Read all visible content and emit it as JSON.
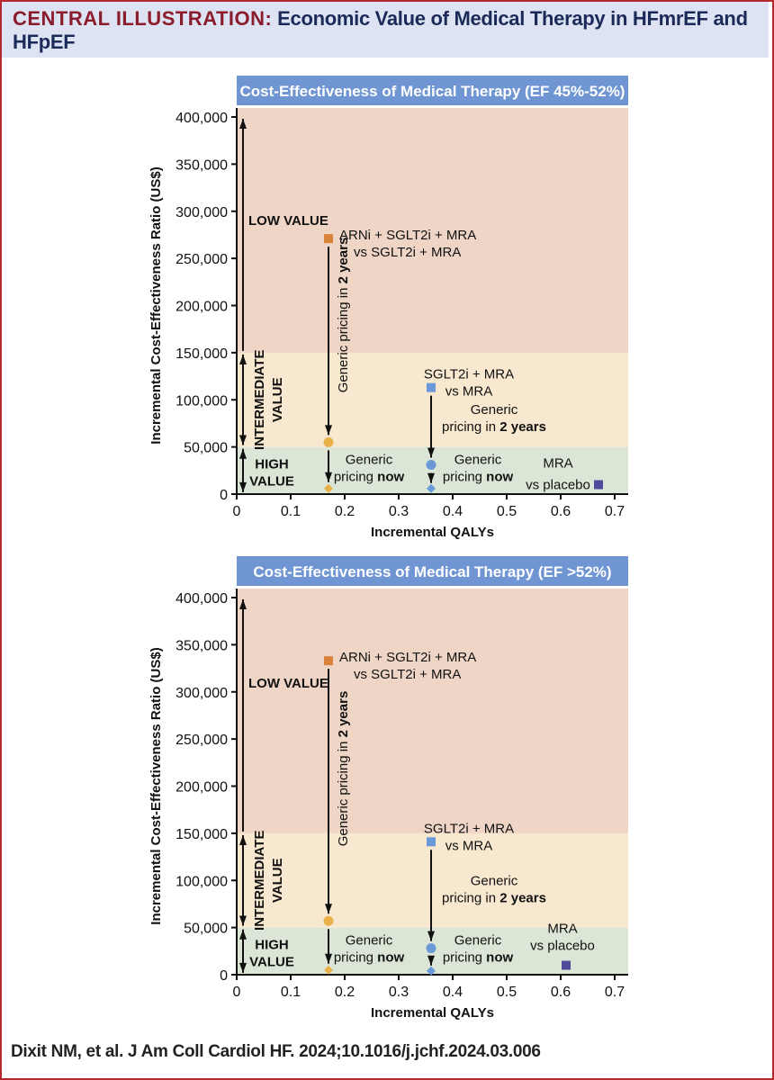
{
  "header": {
    "tag": "CENTRAL ILLUSTRATION:",
    "title": "Economic Value of Medical Therapy in HFmrEF and HFpEF"
  },
  "citation": "Dixit NM, et al. J Am Coll Cardiol HF. 2024;10.1016/j.jchf.2024.03.006",
  "colors": {
    "frame": "#b5282e",
    "header_bg": "#dde3f2",
    "panel_title_bg": "#6f95d2",
    "low_value_bg": "#efd5c6",
    "intermediate_value_bg": "#f7e8cf",
    "high_value_bg": "#dce6d6",
    "arni_marker": "#d9823a",
    "arni_generic_marker": "#e9b14a",
    "sglt2i_marker": "#6a98d8",
    "mra_marker": "#4f4a9c"
  },
  "chart_data": [
    {
      "type": "scatter",
      "title": "Cost-Effectiveness of Medical Therapy (EF 45%-52%)",
      "xlabel": "Incremental QALYs",
      "ylabel": "Incremental Cost-Effectiveness Ratio (US$)",
      "xlim": [
        0,
        0.7
      ],
      "ylim": [
        0,
        400000
      ],
      "x_ticks": [
        "0",
        "0.1",
        "0.2",
        "0.3",
        "0.4",
        "0.5",
        "0.6",
        "0.7"
      ],
      "y_ticks": [
        "0",
        "50,000",
        "100,000",
        "150,000",
        "200,000",
        "250,000",
        "300,000",
        "350,000",
        "400,000"
      ],
      "zones": [
        {
          "label": "HIGH VALUE",
          "from": 0,
          "to": 50000
        },
        {
          "label": "INTERMEDIATE VALUE",
          "from": 50000,
          "to": 150000
        },
        {
          "label": "LOW VALUE",
          "from": 150000,
          "to": 400000
        }
      ],
      "series": [
        {
          "name": "ARNi + SGLT2i + MRA vs SGLT2i + MRA",
          "x": 0.17,
          "y": 271000,
          "marker": "square"
        },
        {
          "name": "ARNi + SGLT2i + MRA (generic pricing in 2 years)",
          "x": 0.17,
          "y": 55000,
          "marker": "circle"
        },
        {
          "name": "ARNi + SGLT2i + MRA (generic pricing now)",
          "x": 0.17,
          "y": 6000,
          "marker": "diamond"
        },
        {
          "name": "SGLT2i + MRA vs MRA",
          "x": 0.36,
          "y": 113000,
          "marker": "square"
        },
        {
          "name": "SGLT2i + MRA (generic pricing in 2 years)",
          "x": 0.36,
          "y": 31000,
          "marker": "circle"
        },
        {
          "name": "SGLT2i + MRA (generic pricing now)",
          "x": 0.36,
          "y": 6000,
          "marker": "diamond"
        },
        {
          "name": "MRA vs placebo",
          "x": 0.67,
          "y": 10000,
          "marker": "square"
        }
      ],
      "annotations": [
        "LOW VALUE",
        "INTERMEDIATE VALUE",
        "HIGH VALUE",
        "ARNi + SGLT2i + MRA",
        "vs SGLT2i + MRA",
        "Generic pricing in 2 years",
        "SGLT2i + MRA",
        "vs MRA",
        "Generic",
        "pricing in 2 years",
        "Generic",
        "pricing now",
        "Generic",
        "pricing now",
        "MRA",
        "vs placebo"
      ]
    },
    {
      "type": "scatter",
      "title": "Cost-Effectiveness of Medical Therapy (EF >52%)",
      "xlabel": "Incremental QALYs",
      "ylabel": "Incremental Cost-Effectiveness Ratio (US$)",
      "xlim": [
        0,
        0.7
      ],
      "ylim": [
        0,
        400000
      ],
      "x_ticks": [
        "0",
        "0.1",
        "0.2",
        "0.3",
        "0.4",
        "0.5",
        "0.6",
        "0.7"
      ],
      "y_ticks": [
        "0",
        "50,000",
        "100,000",
        "150,000",
        "200,000",
        "250,000",
        "300,000",
        "350,000",
        "400,000"
      ],
      "zones": [
        {
          "label": "HIGH VALUE",
          "from": 0,
          "to": 50000
        },
        {
          "label": "INTERMEDIATE VALUE",
          "from": 50000,
          "to": 150000
        },
        {
          "label": "LOW VALUE",
          "from": 150000,
          "to": 400000
        }
      ],
      "series": [
        {
          "name": "ARNi + SGLT2i + MRA vs SGLT2i + MRA",
          "x": 0.17,
          "y": 333000,
          "marker": "square"
        },
        {
          "name": "ARNi + SGLT2i + MRA (generic pricing in 2 years)",
          "x": 0.17,
          "y": 57000,
          "marker": "circle"
        },
        {
          "name": "ARNi + SGLT2i + MRA (generic pricing now)",
          "x": 0.17,
          "y": 5000,
          "marker": "diamond"
        },
        {
          "name": "SGLT2i + MRA vs MRA",
          "x": 0.36,
          "y": 141000,
          "marker": "square"
        },
        {
          "name": "SGLT2i + MRA (generic pricing in 2 years)",
          "x": 0.36,
          "y": 28000,
          "marker": "circle"
        },
        {
          "name": "SGLT2i + MRA (generic pricing now)",
          "x": 0.36,
          "y": 4000,
          "marker": "diamond"
        },
        {
          "name": "MRA vs placebo",
          "x": 0.61,
          "y": 10000,
          "marker": "square"
        }
      ],
      "annotations": [
        "LOW VALUE",
        "INTERMEDIATE VALUE",
        "HIGH VALUE",
        "ARNi + SGLT2i + MRA",
        "vs SGLT2i + MRA",
        "Generic pricing in 2 years",
        "SGLT2i + MRA",
        "vs MRA",
        "Generic",
        "pricing in 2 years",
        "Generic",
        "pricing now",
        "Generic",
        "pricing now",
        "MRA",
        "vs placebo"
      ]
    }
  ],
  "labels": {
    "low_value": "LOW VALUE",
    "intermediate": "INTERMEDIATE",
    "value": "VALUE",
    "high": "HIGH",
    "arni_line1": "ARNi + SGLT2i + MRA",
    "arni_line2": "vs SGLT2i + MRA",
    "generic_2yr_vertical": "Generic pricing in 2 years",
    "sglt_line1": "SGLT2i + MRA",
    "sglt_line2": "vs MRA",
    "generic": "Generic",
    "pricing_in": "pricing in ",
    "two_years": "2 years",
    "pricing": "pricing ",
    "now": "now",
    "mra_line1": "MRA",
    "mra_line2": "vs placebo"
  }
}
